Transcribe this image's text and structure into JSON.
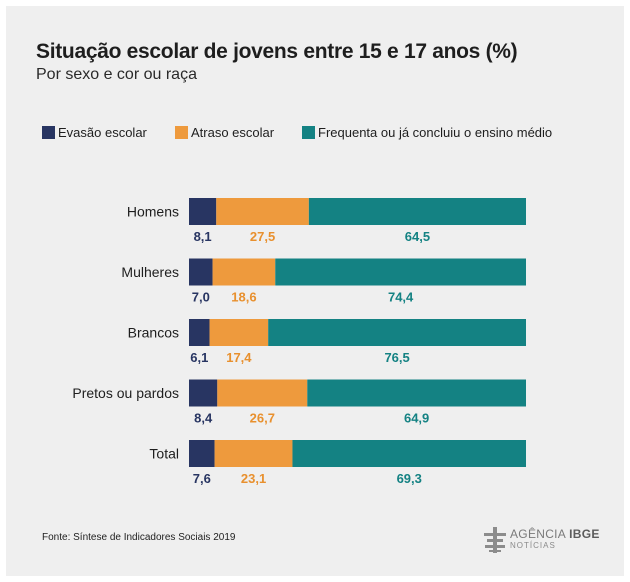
{
  "chart_data": {
    "type": "bar",
    "orientation": "horizontal",
    "stacked": true,
    "title": "Situação escolar de jovens entre 15 e 17 anos (%)",
    "subtitle": "Por sexo e cor ou raça",
    "categories": [
      "Homens",
      "Mulheres",
      "Brancos",
      "Pretos ou pardos",
      "Total"
    ],
    "series": [
      {
        "name": "Evasão escolar",
        "color": "#283562",
        "label_color": "#283562",
        "values": [
          8.1,
          7.0,
          6.1,
          8.4,
          7.6
        ]
      },
      {
        "name": "Atraso escolar",
        "color": "#ee9a3d",
        "label_color": "#e8902e",
        "values": [
          27.5,
          18.6,
          17.4,
          26.7,
          23.1
        ]
      },
      {
        "name": "Frequenta ou já concluiu o ensino médio",
        "color": "#148283",
        "label_color": "#148283",
        "values": [
          64.5,
          74.4,
          76.5,
          64.9,
          69.3
        ]
      }
    ],
    "value_labels": [
      [
        "8,1",
        "27,5",
        "64,5"
      ],
      [
        "7,0",
        "18,6",
        "74,4"
      ],
      [
        "6,1",
        "17,4",
        "76,5"
      ],
      [
        "8,4",
        "26,7",
        "64,9"
      ],
      [
        "7,6",
        "23,1",
        "69,3"
      ]
    ],
    "xlim": [
      0,
      100
    ],
    "legend_position": "top",
    "grid": false,
    "xlabel": "",
    "ylabel": ""
  },
  "source": "Fonte:  Síntese de Indicadores Sociais 2019",
  "logo": {
    "word_light": "AGÊNCIA",
    "word_bold": "IBGE",
    "sub": "NOTÍCIAS"
  }
}
